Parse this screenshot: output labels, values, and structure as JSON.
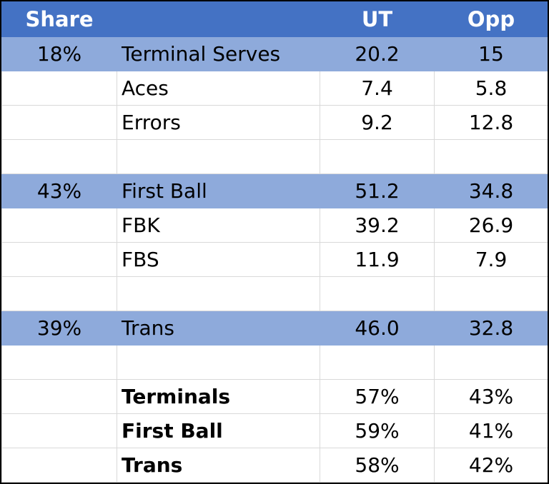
{
  "header": {
    "share": "Share",
    "label": "",
    "ut": "UT",
    "opp": "Opp"
  },
  "rows": [
    {
      "share": "18%",
      "label": "Terminal Serves",
      "ut": "20.2",
      "opp": "15",
      "section": true
    },
    {
      "share": "",
      "label": "Aces",
      "ut": "7.4",
      "opp": "5.8"
    },
    {
      "share": "",
      "label": "Errors",
      "ut": "9.2",
      "opp": "12.8"
    },
    {
      "share": "",
      "label": "",
      "ut": "",
      "opp": ""
    },
    {
      "share": "43%",
      "label": "First Ball",
      "ut": "51.2",
      "opp": "34.8",
      "section": true
    },
    {
      "share": "",
      "label": "FBK",
      "ut": "39.2",
      "opp": "26.9"
    },
    {
      "share": "",
      "label": "FBS",
      "ut": "11.9",
      "opp": "7.9"
    },
    {
      "share": "",
      "label": "",
      "ut": "",
      "opp": ""
    },
    {
      "share": "39%",
      "label": "Trans",
      "ut": "46.0",
      "opp": "32.8",
      "section": true
    },
    {
      "share": "",
      "label": "",
      "ut": "",
      "opp": ""
    },
    {
      "share": "",
      "label": "Terminals",
      "ut": "57%",
      "opp": "43%",
      "bold": true
    },
    {
      "share": "",
      "label": "First Ball",
      "ut": "59%",
      "opp": "41%",
      "bold": true
    },
    {
      "share": "",
      "label": "Trans",
      "ut": "58%",
      "opp": "42%",
      "bold": true
    }
  ],
  "colors": {
    "header_bg": "#4472c4",
    "section_bg": "#8eaadb",
    "grid": "#d9d9d9"
  }
}
